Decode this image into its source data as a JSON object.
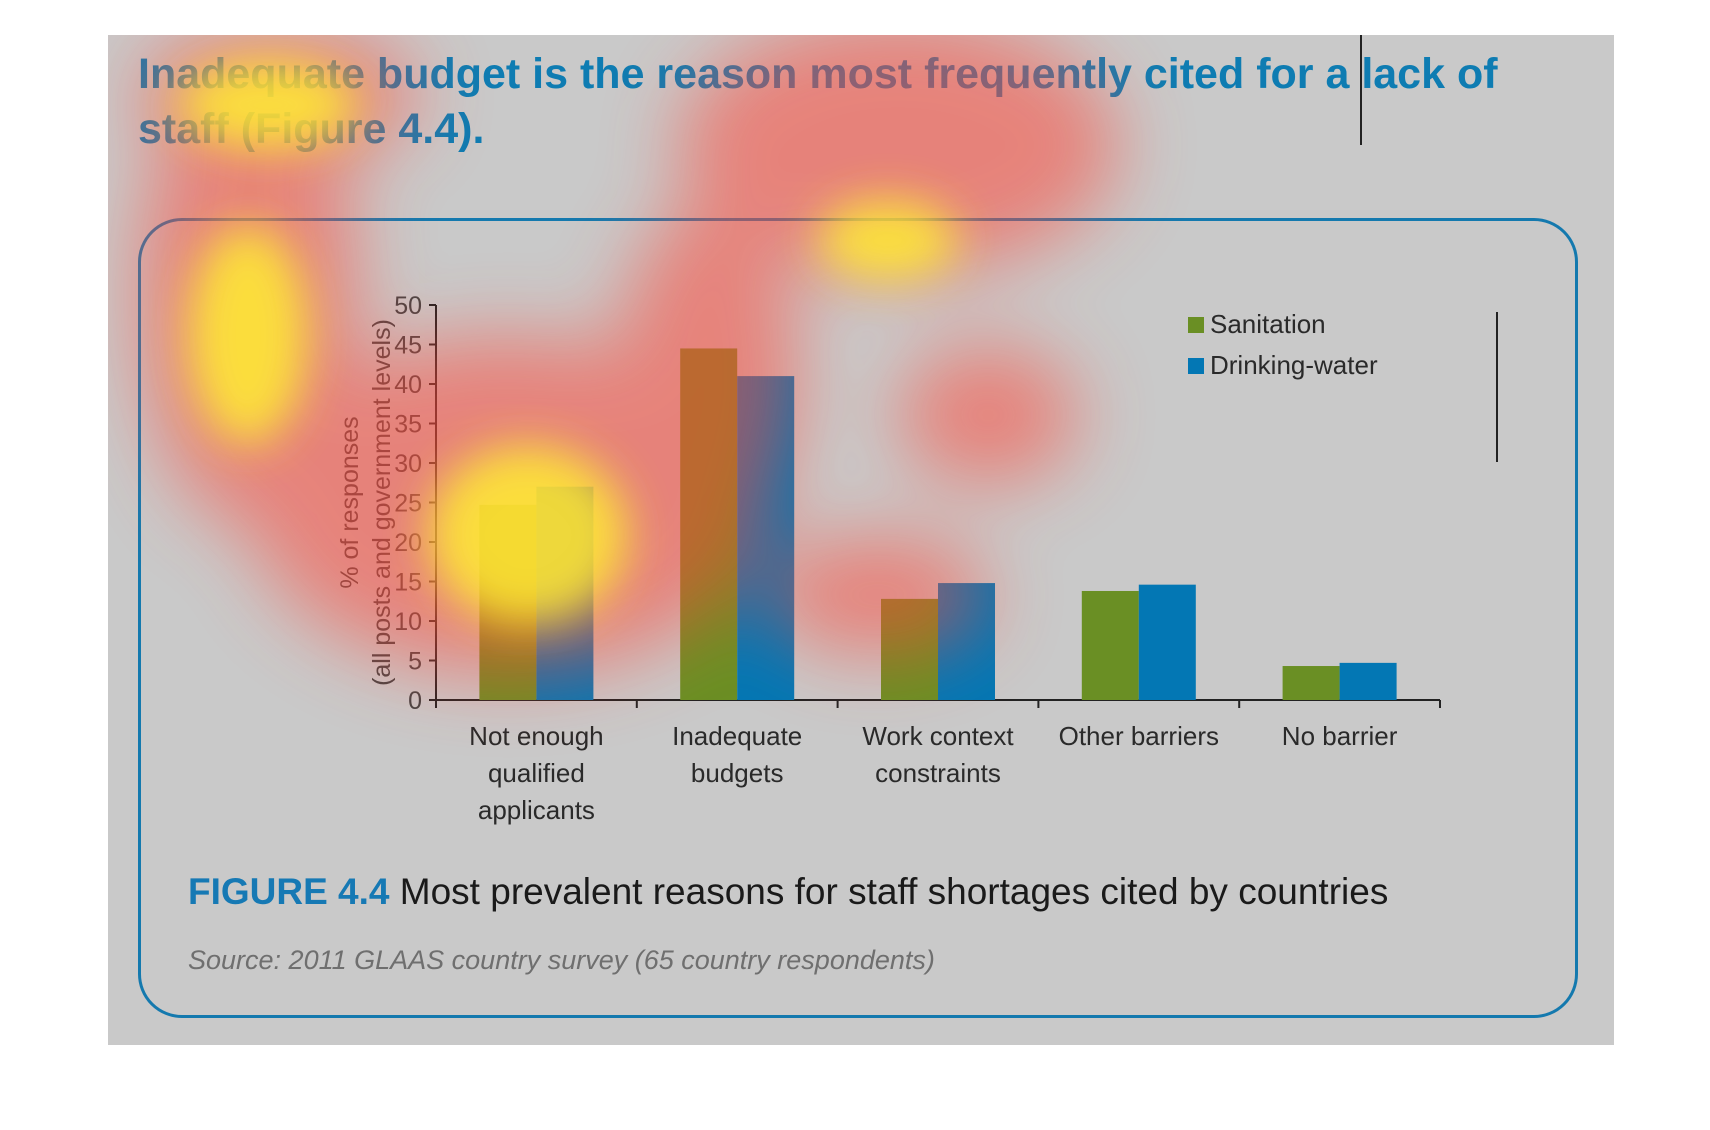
{
  "headline": "Inadequate budget is the reason most frequently cited for a lack of staff (Figure 4.4).",
  "caption": {
    "label": "FIGURE 4.4",
    "text": "Most prevalent reasons for staff shortages cited by countries"
  },
  "source": "Source: 2011 GLAAS country survey (65 country respondents)",
  "colors": {
    "panel": "#c9c9c9",
    "accent": "#1479ae",
    "sanitation": "#6a8f24",
    "drinking_water": "#0377b4"
  },
  "chart_data": {
    "type": "bar",
    "categories": [
      [
        "Not enough",
        "qualified",
        "applicants"
      ],
      [
        "Inadequate",
        "budgets"
      ],
      [
        "Work context",
        "constraints"
      ],
      [
        "Other barriers"
      ],
      [
        "No barrier"
      ]
    ],
    "series": [
      {
        "name": "Sanitation",
        "color": "#6a8f24",
        "values": [
          24.7,
          44.5,
          12.8,
          13.8,
          4.3
        ]
      },
      {
        "name": "Drinking-water",
        "color": "#0377b4",
        "values": [
          27,
          41,
          14.8,
          14.6,
          4.7
        ]
      }
    ],
    "ylabel": [
      "% of responses",
      "(all posts and government levels)"
    ],
    "ylim": [
      0,
      50
    ],
    "yticks": [
      0,
      5,
      10,
      15,
      20,
      25,
      30,
      35,
      40,
      45,
      50
    ],
    "grid": false,
    "legend": "top-right"
  }
}
